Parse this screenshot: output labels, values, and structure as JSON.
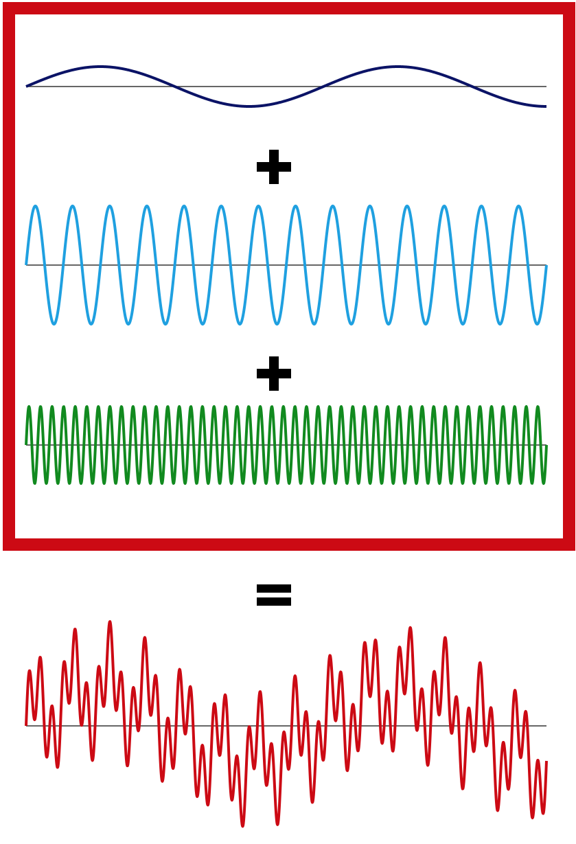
{
  "colors": {
    "frame": "#cc0a14",
    "baseline": "#333333",
    "operator": "#000000",
    "background": "#ffffff"
  },
  "operators": [
    "plus-icon",
    "plus-icon",
    "equals-icon"
  ],
  "waves": [
    {
      "id": "low-frequency-wave",
      "color": "#0b1366",
      "cycles": 1.75,
      "phase": 0,
      "in_frame": true
    },
    {
      "id": "mid-frequency-wave",
      "color": "#1fa0e0",
      "cycles": 14,
      "phase": 0,
      "in_frame": true
    },
    {
      "id": "high-frequency-wave",
      "color": "#118a1f",
      "cycles": 45,
      "phase": 0,
      "in_frame": true
    },
    {
      "id": "sum-wave",
      "color": "#cc0a14",
      "cycles": null,
      "phase": 0,
      "in_frame": false,
      "components": [
        "low-frequency-wave",
        "mid-frequency-wave",
        "high-frequency-wave"
      ]
    }
  ]
}
